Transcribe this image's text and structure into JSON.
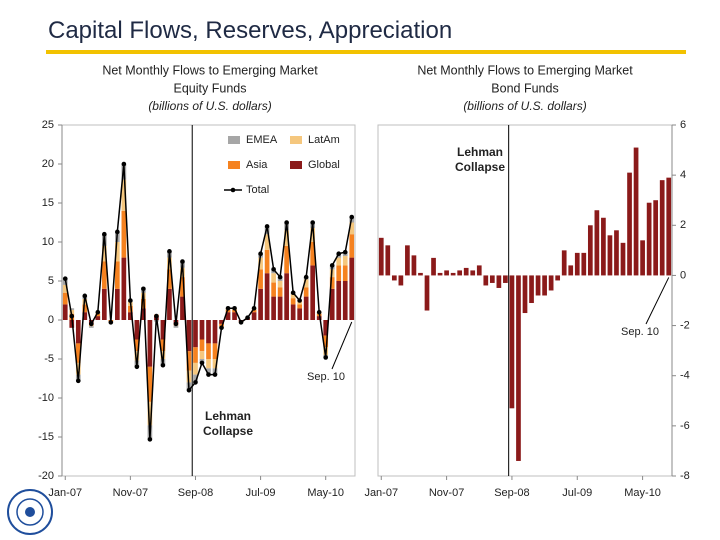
{
  "slide_title": "Capital Flows, Reserves, Appreciation",
  "chart_data": [
    {
      "type": "bar",
      "title_lines": [
        "Net Monthly Flows to Emerging Market",
        "Equity Funds"
      ],
      "subtitle": "(billions of U.S. dollars)",
      "categories": [
        "Jan-07",
        null,
        null,
        null,
        null,
        null,
        null,
        null,
        null,
        null,
        "Nov-07",
        null,
        null,
        null,
        null,
        null,
        null,
        null,
        null,
        null,
        "Sep-08",
        null,
        null,
        null,
        null,
        null,
        null,
        null,
        null,
        null,
        "Jul-09",
        null,
        null,
        null,
        null,
        null,
        null,
        null,
        null,
        null,
        "May-10",
        null,
        null,
        null,
        null
      ],
      "series": [
        {
          "name": "Global",
          "style": "bar",
          "color": "#8b1a1a",
          "values": [
            2,
            -1,
            -3,
            1,
            -0.5,
            0.5,
            4,
            0,
            4,
            8,
            1,
            -2.5,
            1.5,
            -6,
            0.5,
            -2.5,
            4,
            -0.5,
            3,
            -4,
            -3.5,
            -2.5,
            -3,
            -3,
            -0.5,
            1,
            1,
            -0.2,
            0.2,
            1,
            4,
            6,
            3,
            3,
            6,
            2,
            1.5,
            3,
            7,
            0.5,
            -2,
            4,
            5,
            5,
            8
          ]
        },
        {
          "name": "Asia",
          "style": "bar",
          "color": "#f58220",
          "values": [
            1.5,
            0.8,
            -2.5,
            1,
            -0.2,
            0.3,
            3.5,
            -0.2,
            3.5,
            6,
            0.8,
            -1.5,
            1.2,
            -4.5,
            0.2,
            -1.5,
            2.5,
            -0.2,
            2.5,
            -2.5,
            -2,
            -1.5,
            -2,
            -2,
            -0.3,
            0.3,
            0.3,
            -0.1,
            0.1,
            0.3,
            2.5,
            3,
            1.8,
            1.2,
            3.5,
            0.8,
            0.5,
            1.2,
            3,
            0.3,
            -1.5,
            1.5,
            2,
            2,
            3
          ]
        },
        {
          "name": "LatAm",
          "style": "bar",
          "color": "#f5c77e",
          "values": [
            1,
            0.5,
            -1.5,
            0.7,
            -0.1,
            0.2,
            2,
            0,
            2.5,
            4,
            0.5,
            -1.2,
            0.8,
            -3,
            0,
            -1,
            1.5,
            0,
            1.2,
            -1.5,
            -1.5,
            -1,
            -1.2,
            -1.2,
            -0.2,
            0.2,
            0.2,
            0,
            0,
            0.2,
            1.5,
            2,
            1.2,
            0.8,
            2,
            0.5,
            0.4,
            1,
            1.8,
            0.2,
            -1,
            1,
            1,
            1.2,
            1.5
          ]
        },
        {
          "name": "EMEA",
          "style": "bar",
          "color": "#a6a6a6",
          "values": [
            0.8,
            0.2,
            -0.8,
            0.4,
            -0.2,
            0,
            1.5,
            -0.1,
            1.3,
            2,
            0.2,
            -0.8,
            0.5,
            -1.8,
            -0.2,
            -0.8,
            0.8,
            -0.3,
            0.8,
            -1,
            -1,
            -0.5,
            -0.8,
            -0.8,
            0,
            0,
            0,
            0,
            0,
            0,
            0.5,
            1,
            0.5,
            0.5,
            1,
            0.2,
            0.1,
            0.3,
            0.7,
            0,
            -0.3,
            0.5,
            0.5,
            0.5,
            0.7
          ]
        },
        {
          "name": "Total",
          "style": "line",
          "color": "#000000",
          "values": [
            5.3,
            0.5,
            -7.8,
            3.1,
            -0.5,
            1.0,
            11.0,
            -0.3,
            11.3,
            20.0,
            2.5,
            -6.0,
            4.0,
            -15.3,
            0.5,
            -5.8,
            8.8,
            -0.5,
            7.5,
            -9.0,
            -8.0,
            -5.5,
            -7.0,
            -7.0,
            -1.0,
            1.5,
            1.5,
            -0.3,
            0.3,
            1.5,
            8.5,
            12.0,
            6.5,
            5.5,
            12.5,
            3.5,
            2.5,
            5.5,
            12.5,
            1.0,
            -4.8,
            7.0,
            8.5,
            8.7,
            13.2
          ]
        }
      ],
      "legend_order": [
        3,
        2,
        1,
        0,
        4
      ],
      "legend": "upper right",
      "ylim": [
        -20,
        25
      ],
      "yticks": [
        -20,
        -15,
        -10,
        -5,
        0,
        5,
        10,
        15,
        20,
        25
      ],
      "axis_side": "left",
      "annotations": [
        {
          "text_lines": [
            "Lehman",
            "Collapse"
          ],
          "x": "Sep-08"
        },
        {
          "text": "Sep. 10"
        }
      ]
    },
    {
      "type": "bar",
      "title_lines": [
        "Net Monthly Flows to Emerging Market",
        "Bond Funds"
      ],
      "subtitle": "(billions of U.S. dollars)",
      "categories": [
        "Jan-07",
        null,
        null,
        null,
        null,
        null,
        null,
        null,
        null,
        null,
        "Nov-07",
        null,
        null,
        null,
        null,
        null,
        null,
        null,
        null,
        null,
        "Sep-08",
        null,
        null,
        null,
        null,
        null,
        null,
        null,
        null,
        null,
        "Jul-09",
        null,
        null,
        null,
        null,
        null,
        null,
        null,
        null,
        null,
        "May-10",
        null,
        null,
        null,
        null
      ],
      "series": [
        {
          "style": "bar",
          "color": "#8b1a1a",
          "values": [
            1.5,
            1.2,
            -0.2,
            -0.4,
            1.2,
            0.8,
            0.1,
            -1.4,
            0.7,
            0.1,
            0.2,
            0.1,
            0.2,
            0.3,
            0.2,
            0.4,
            -0.4,
            -0.3,
            -0.5,
            -0.3,
            -5.3,
            -7.4,
            -1.5,
            -1.1,
            -0.8,
            -0.8,
            -0.6,
            -0.2,
            1.0,
            0.4,
            0.9,
            0.9,
            2.0,
            2.6,
            2.3,
            1.6,
            1.8,
            1.3,
            4.1,
            5.1,
            1.4,
            2.9,
            3.0,
            3.8,
            3.9
          ]
        }
      ],
      "ylim": [
        -8,
        6
      ],
      "yticks": [
        -8,
        -6,
        -4,
        -2,
        0,
        2,
        4,
        6
      ],
      "axis_side": "right",
      "annotations": [
        {
          "text_lines": [
            "Lehman",
            "Collapse"
          ],
          "x": "Sep-08"
        },
        {
          "text": "Sep. 10"
        }
      ]
    }
  ]
}
